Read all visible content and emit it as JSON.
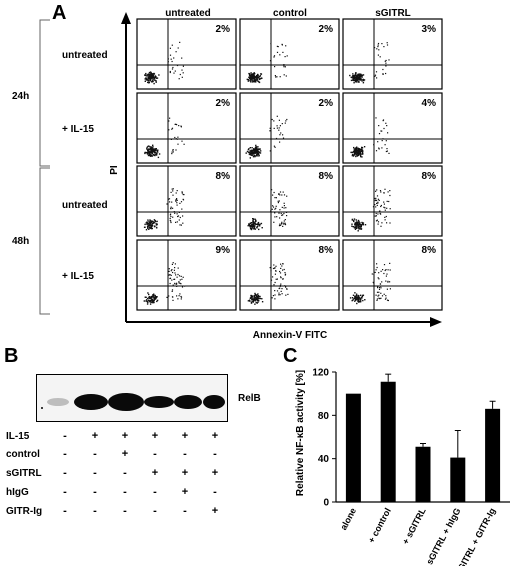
{
  "panel_a": {
    "letter": "A",
    "columns": [
      "untreated",
      "control",
      "sGITRL"
    ],
    "time_groups": [
      {
        "label": "24h",
        "rows": [
          "untreated",
          "+ IL-15"
        ]
      },
      {
        "label": "48h",
        "rows": [
          "untreated",
          "+ IL-15"
        ]
      }
    ],
    "percentages": [
      [
        "2%",
        "2%",
        "3%"
      ],
      [
        "2%",
        "2%",
        "4%"
      ],
      [
        "8%",
        "8%",
        "8%"
      ],
      [
        "9%",
        "8%",
        "8%"
      ]
    ],
    "y_axis_label": "PI",
    "x_axis_label": "Annexin-V FITC"
  },
  "panel_b": {
    "letter": "B",
    "band_label": "RelB",
    "conditions": [
      {
        "label": "IL-15",
        "values": [
          "-",
          "+",
          "+",
          "+",
          "+",
          "+"
        ]
      },
      {
        "label": "control",
        "values": [
          "-",
          "-",
          "+",
          "-",
          "-",
          "-"
        ]
      },
      {
        "label": "sGITRL",
        "values": [
          "-",
          "-",
          "-",
          "+",
          "+",
          "+"
        ]
      },
      {
        "label": "hIgG",
        "values": [
          "-",
          "-",
          "-",
          "-",
          "+",
          "-"
        ]
      },
      {
        "label": "GITR-Ig",
        "values": [
          "-",
          "-",
          "-",
          "-",
          "-",
          "+"
        ]
      }
    ]
  },
  "panel_c": {
    "letter": "C",
    "chart_data": {
      "type": "bar",
      "categories": [
        "alone",
        "+ control",
        "+ sGITRL",
        "+ sGITRL + hIgG",
        "+ sGITRL + GITR-Ig"
      ],
      "values": [
        100,
        111,
        51,
        41,
        86
      ],
      "errors": [
        0,
        7,
        3,
        25,
        7
      ],
      "ylabel": "Relative NF-κB activity [%]",
      "ylim": [
        0,
        120
      ],
      "yticks": [
        "0",
        "40",
        "80",
        "120"
      ],
      "bar_color": "#000000"
    }
  }
}
